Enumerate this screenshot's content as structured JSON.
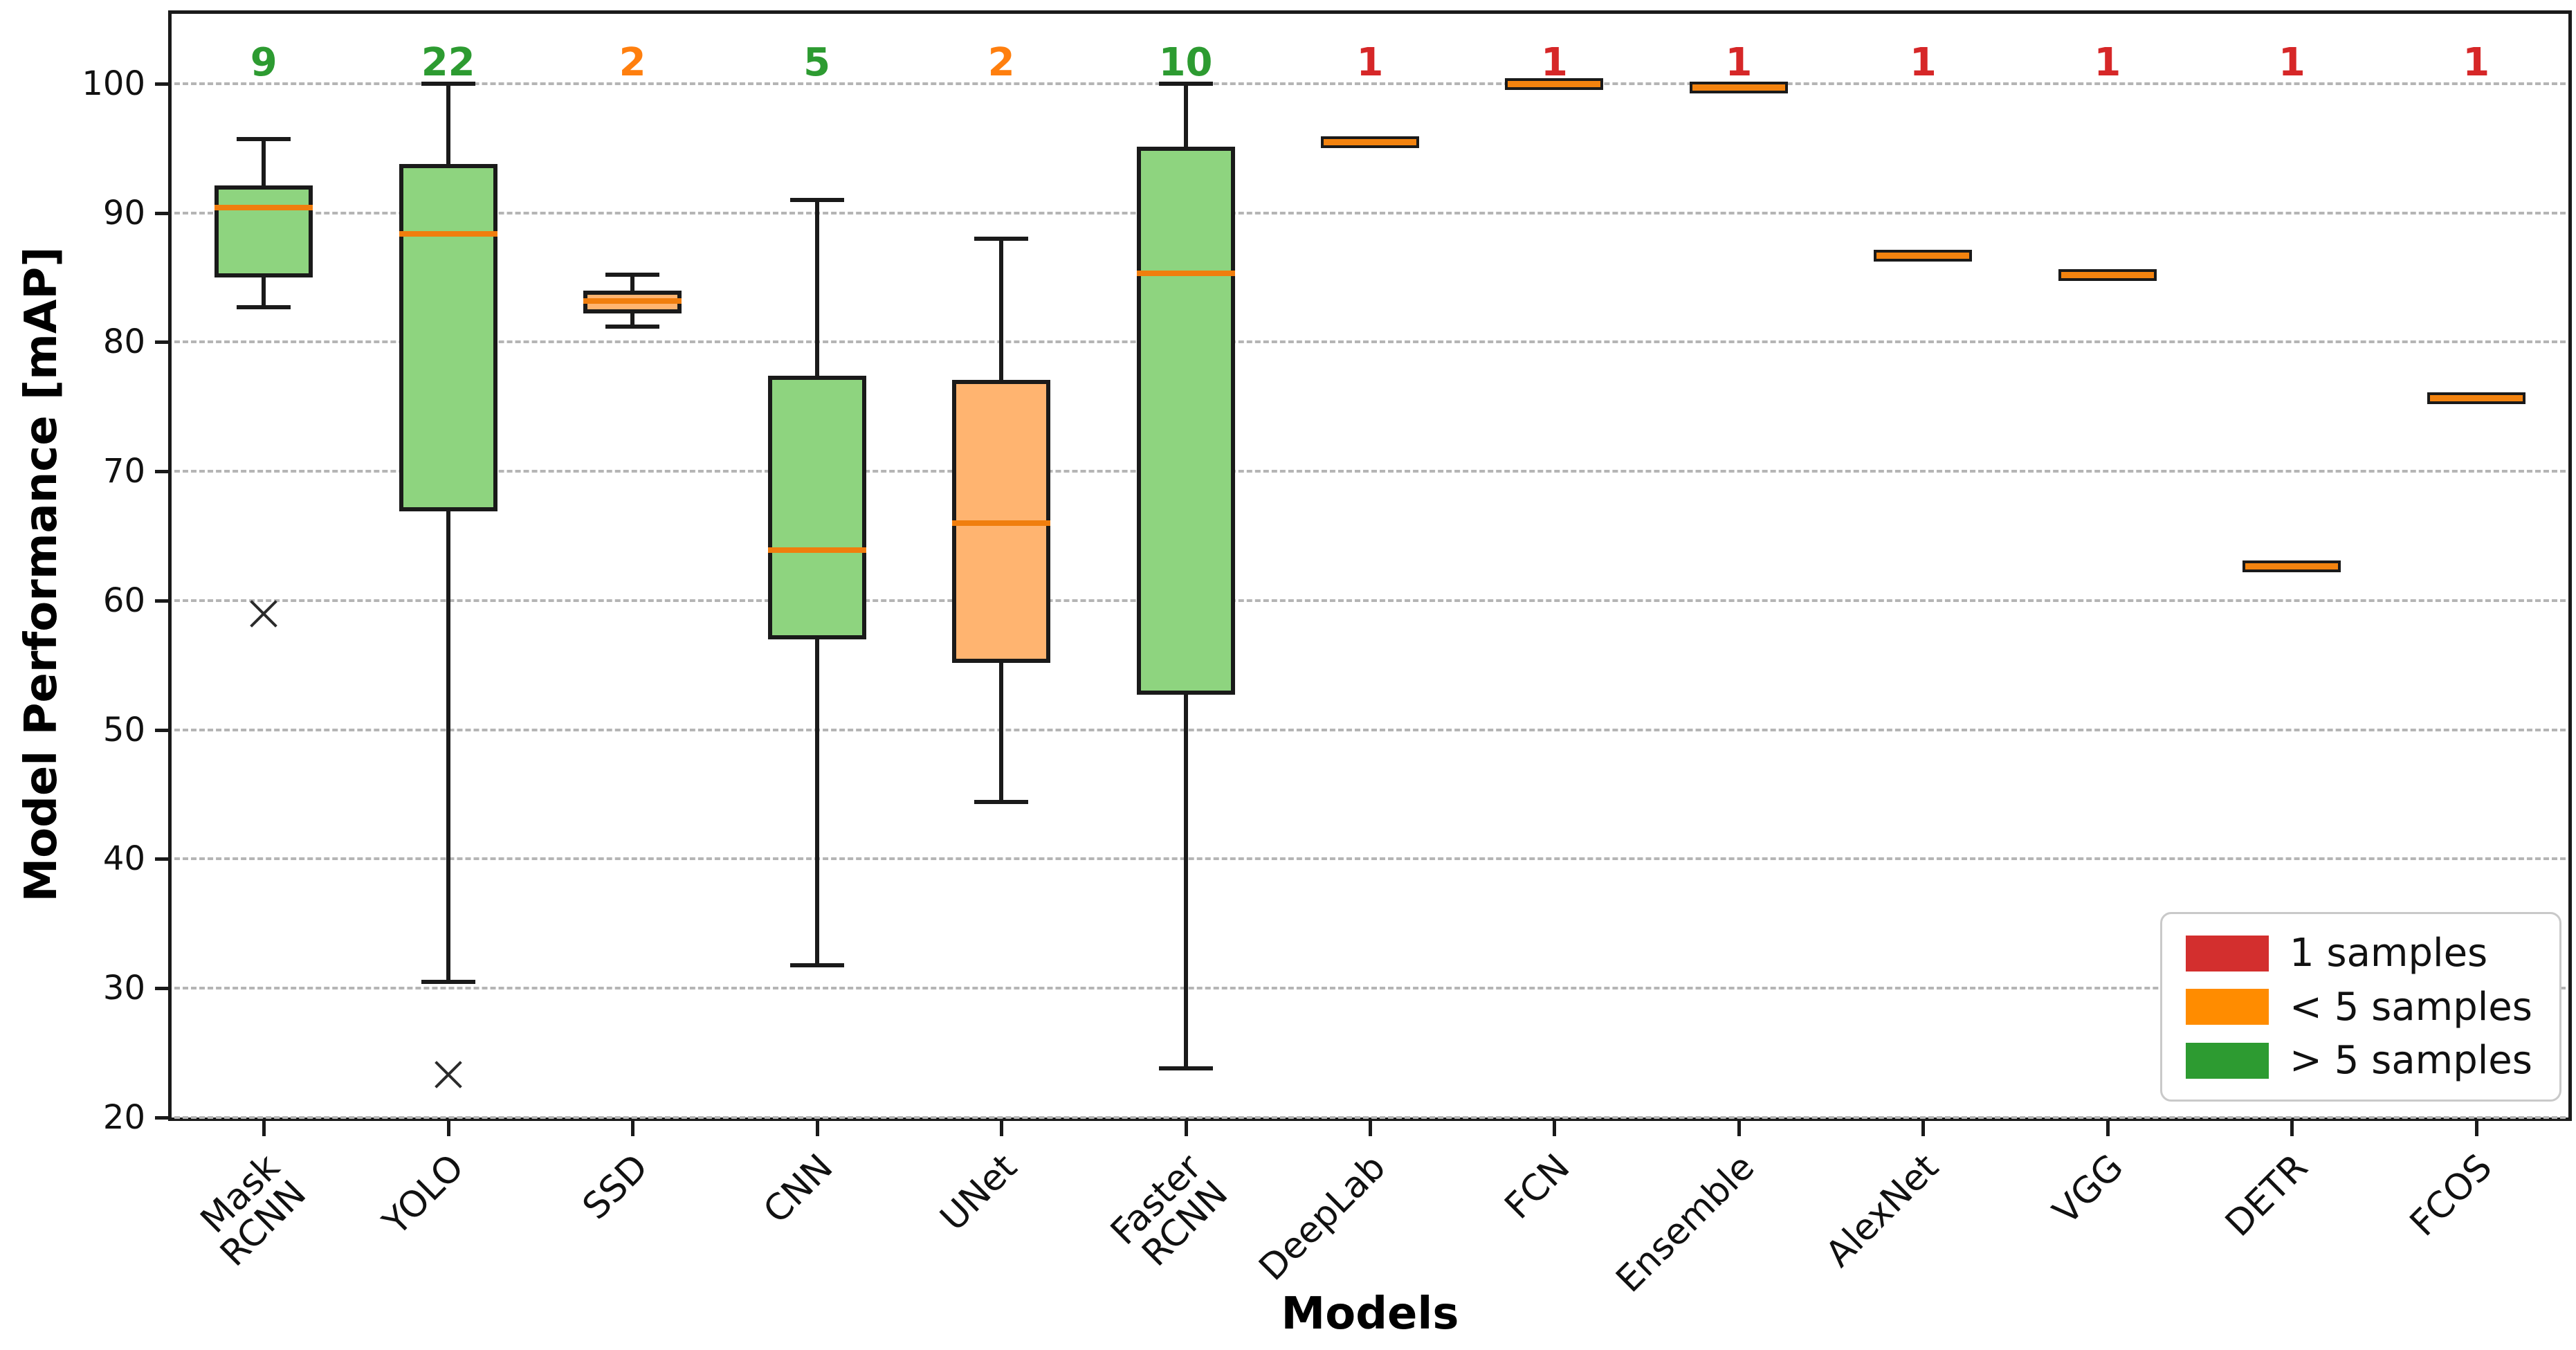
{
  "chart_data": {
    "type": "boxplot",
    "title": "",
    "xlabel": "Models",
    "ylabel": "Model Performance [mAP]",
    "ylim": [
      20,
      105.4
    ],
    "yticks": [
      20,
      30,
      40,
      50,
      60,
      70,
      80,
      90,
      100
    ],
    "grid": "horizontal-dashed",
    "legend_position": "lower-right",
    "colors": {
      "green_fill": "#8ed47f",
      "orange_fill": "#ffb470",
      "median_line": "#f07e0e",
      "count_green": "#2d9b31",
      "count_orange": "#ff7f0e",
      "count_red": "#d62728",
      "box_edge": "#1a1a1a"
    },
    "models": [
      {
        "label": "Mask\nRCNN",
        "count": 9,
        "count_color": "green",
        "fill": "green",
        "whislo": 82.7,
        "q1": 85.0,
        "med": 90.4,
        "q3": 92.1,
        "whishi": 95.7,
        "outliers": [
          59.0
        ]
      },
      {
        "label": "YOLO",
        "count": 22,
        "count_color": "green",
        "fill": "green",
        "whislo": 30.5,
        "q1": 66.9,
        "med": 88.4,
        "q3": 93.8,
        "whishi": 100.0,
        "outliers": [
          23.3
        ]
      },
      {
        "label": "SSD",
        "count": 2,
        "count_color": "orange",
        "fill": "orange",
        "whislo": 81.2,
        "q1": 82.2,
        "med": 83.2,
        "q3": 84.0,
        "whishi": 85.2,
        "outliers": []
      },
      {
        "label": "CNN",
        "count": 5,
        "count_color": "green",
        "fill": "green",
        "whislo": 31.8,
        "q1": 57.0,
        "med": 63.9,
        "q3": 77.4,
        "whishi": 91.0,
        "outliers": []
      },
      {
        "label": "UNet",
        "count": 2,
        "count_color": "orange",
        "fill": "orange",
        "whislo": 44.4,
        "q1": 55.2,
        "med": 66.0,
        "q3": 77.1,
        "whishi": 88.0,
        "outliers": []
      },
      {
        "label": "Faster\nRCNN",
        "count": 10,
        "count_color": "green",
        "fill": "green",
        "whislo": 23.8,
        "q1": 52.7,
        "med": 85.3,
        "q3": 95.1,
        "whishi": 100.0,
        "outliers": []
      },
      {
        "label": "DeepLab",
        "count": 1,
        "count_color": "red",
        "fill": "single",
        "value": 95.5,
        "outliers": []
      },
      {
        "label": "FCN",
        "count": 1,
        "count_color": "red",
        "fill": "single",
        "value": 100.0,
        "outliers": []
      },
      {
        "label": "Ensemble",
        "count": 1,
        "count_color": "red",
        "fill": "single",
        "value": 99.7,
        "outliers": []
      },
      {
        "label": "AlexNet",
        "count": 1,
        "count_color": "red",
        "fill": "single",
        "value": 86.7,
        "outliers": []
      },
      {
        "label": "VGG",
        "count": 1,
        "count_color": "red",
        "fill": "single",
        "value": 85.2,
        "outliers": []
      },
      {
        "label": "DETR",
        "count": 1,
        "count_color": "red",
        "fill": "single",
        "value": 62.7,
        "outliers": []
      },
      {
        "label": "FCOS",
        "count": 1,
        "count_color": "red",
        "fill": "single",
        "value": 75.7,
        "outliers": []
      }
    ]
  },
  "legend": {
    "items": [
      {
        "label": "1 samples",
        "color": "#d32f2e"
      },
      {
        "label": "< 5 samples",
        "color": "#ff8c00"
      },
      {
        "label": "> 5 samples",
        "color": "#2d9b31"
      }
    ]
  }
}
